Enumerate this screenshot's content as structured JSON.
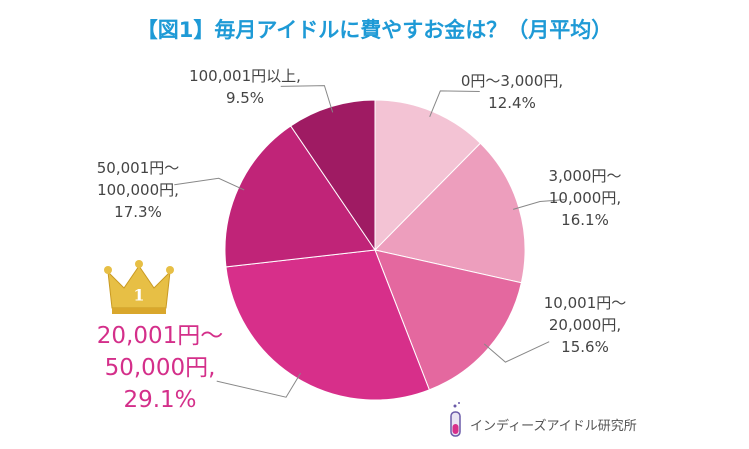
{
  "chart_data": {
    "type": "pie",
    "title": "【図1】毎月アイドルに費やすお金は？（月平均）",
    "categories": [
      "0円～3,000円,",
      "3,000円～\n10,000円,",
      "10,001円～\n20,000円,",
      "20,001円～\n50,000円,",
      "50,001円～\n100,000円,",
      "100,001円以上,"
    ],
    "values": [
      12.4,
      16.1,
      15.6,
      29.1,
      17.3,
      9.5
    ],
    "value_labels": [
      "12.4%",
      "16.1%",
      "15.6%",
      "29.1%",
      "17.3%",
      "9.5%"
    ],
    "colors": [
      "#f3c3d4",
      "#ed9ebd",
      "#e4689f",
      "#d72f8a",
      "#c02478",
      "#9f1b63"
    ],
    "rank_badge": "1",
    "source": "インディーズアイドル研究所"
  }
}
